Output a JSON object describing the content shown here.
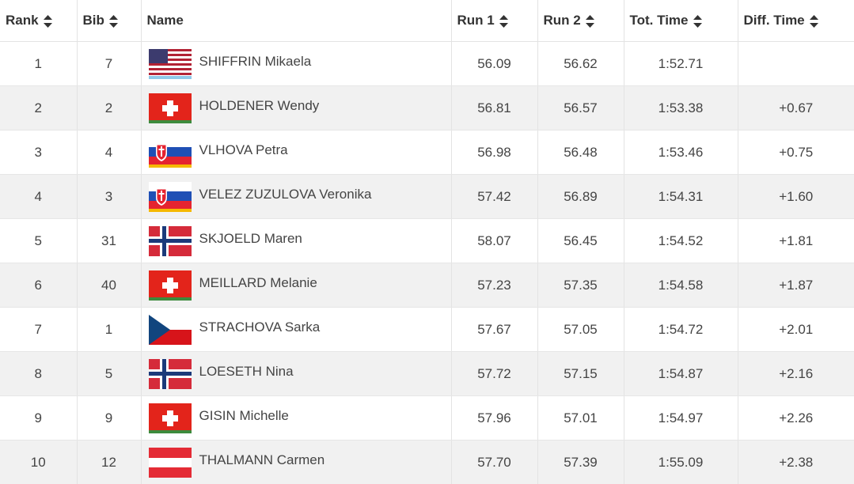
{
  "table": {
    "headers": [
      "Rank",
      "Bib",
      "Name",
      "Run 1",
      "Run 2",
      "Tot. Time",
      "Diff. Time"
    ],
    "rows": [
      [
        "1",
        "7",
        "SHIFFRIN Mikaela",
        "56.09",
        "56.62",
        "1:52.71"
      ],
      [
        "2",
        "2",
        "HOLDENER Wendy",
        "56.81",
        "56.57",
        "1:53.38",
        "+0.67"
      ],
      [
        "3",
        "4",
        "VLHOVA Petra",
        "56.98",
        "56.48",
        "1:53.46",
        "+0.75"
      ],
      [
        "4",
        "3",
        "VELEZ ZUZULOVA Veronika",
        "57.42",
        "56.89",
        "1:54.31",
        "+1.60"
      ],
      [
        "5",
        "31",
        "SKJOELD Maren",
        "58.07",
        "56.45",
        "1:54.52",
        "+1.81"
      ],
      [
        "6",
        "40",
        "MEILLARD Melanie",
        "57.23",
        "57.35",
        "1:54.58",
        "+1.87"
      ],
      [
        "7",
        "1",
        "STRACHOVA Sarka",
        "57.67",
        "57.05",
        "1:54.72",
        "+2.01"
      ],
      [
        "8",
        "5",
        "LOESETH Nina",
        "57.72",
        "57.15",
        "1:54.87",
        "+2.16"
      ],
      [
        "9",
        "9",
        "GISIN Michelle",
        "57.96",
        "57.01",
        "1:54.97",
        "+2.26"
      ],
      [
        "10",
        "12",
        "THALMANN Carmen",
        "57.70",
        "57.39",
        "1:55.09",
        "+2.38"
      ]
    ]
  }
}
